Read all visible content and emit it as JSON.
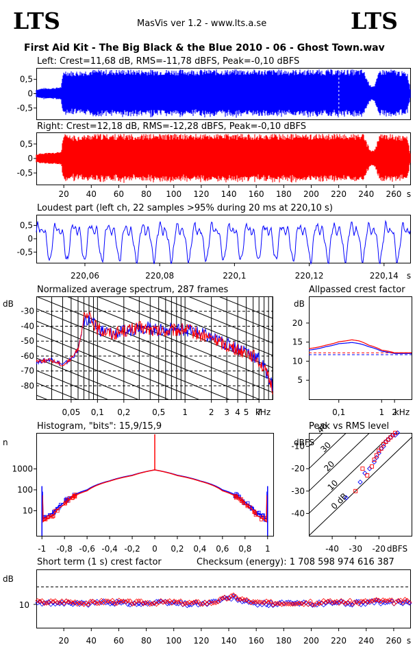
{
  "header": {
    "logo_left": "LTS",
    "logo_right": "LTS",
    "app_title": "MasVis ver 1.2 - www.lts.a.se",
    "file_title": "First Aid Kit - The Big Black & the Blue 2010 - 06 - Ghost Town.wav"
  },
  "colors": {
    "left": "#0000ff",
    "right": "#ff0000",
    "grid": "#000000",
    "background": "#ffffff"
  },
  "panels": {
    "left_wave": {
      "label": "Left: Crest=11,68 dB, RMS=-11,78 dBFS, Peak=-0,10 dBFS",
      "y_ticks": [
        "0,5",
        "0",
        "-0,5"
      ]
    },
    "right_wave": {
      "label": "Right: Crest=12,18 dB, RMS=-12,28 dBFS, Peak=-0,10 dBFS",
      "y_ticks": [
        "0,5",
        "0",
        "-0,5"
      ],
      "x_ticks": [
        "20",
        "40",
        "60",
        "80",
        "100",
        "120",
        "140",
        "160",
        "180",
        "200",
        "220",
        "240",
        "260"
      ],
      "x_unit": "s"
    },
    "loudest": {
      "label": "Loudest part (left  ch, 22 samples >95% during 20 ms at 220,10 s)",
      "y_ticks": [
        "0,5",
        "0",
        "-0,5"
      ],
      "x_ticks": [
        "220,06",
        "220,08",
        "220,1",
        "220,12",
        "220,14"
      ],
      "x_unit": "s"
    },
    "spectrum": {
      "label": "Normalized average spectrum, 287 frames",
      "y_unit": "dB",
      "y_ticks": [
        "-30",
        "-40",
        "-50",
        "-60",
        "-70",
        "-80"
      ],
      "x_ticks": [
        "0,05",
        "0,1",
        "0,2",
        "0,5",
        "1",
        "2",
        "3",
        "4",
        "5",
        "7"
      ],
      "x_unit": "kHz"
    },
    "allpass": {
      "label": "Allpassed crest factor",
      "y_unit": "dB",
      "y_ticks": [
        "20",
        "15",
        "10",
        "5"
      ],
      "x_ticks": [
        "0,1",
        "1",
        "2"
      ],
      "x_unit": "kHz"
    },
    "histogram": {
      "label": "Histogram, \"bits\": 15,9/15,9",
      "y_unit": "n",
      "y_ticks": [
        "1000",
        "100",
        "10"
      ],
      "x_ticks": [
        "-1",
        "-0,8",
        "-0,6",
        "-0,4",
        "-0,2",
        "0",
        "0,2",
        "0,4",
        "0,6",
        "0,8",
        "1"
      ]
    },
    "peak_rms": {
      "label": "Peak vs RMS level",
      "y_unit": "dBFS",
      "y_ticks": [
        "-10",
        "-20",
        "-30",
        "-40"
      ],
      "x_ticks": [
        "-40",
        "-30",
        "-20"
      ],
      "x_unit": "dBFS",
      "diag_labels": [
        "40",
        "30",
        "20",
        "10",
        "0 dB"
      ]
    },
    "short_crest": {
      "label": "Short term (1 s) crest factor",
      "checksum": "Checksum (energy):  1 708 598 974 616 387",
      "y_unit": "dB",
      "y_ticks": [
        "10"
      ],
      "x_ticks": [
        "20",
        "40",
        "60",
        "80",
        "100",
        "120",
        "140",
        "160",
        "180",
        "200",
        "220",
        "240",
        "260"
      ],
      "x_unit": "s"
    }
  },
  "chart_data": [
    {
      "type": "area",
      "title": "Left: Crest=11,68 dB, RMS=-11,78 dBFS, Peak=-0,10 dBFS",
      "x_unit": "s",
      "xlim": [
        0,
        272
      ],
      "ylim": [
        -0.9,
        0.9
      ],
      "envelope_x": [
        0,
        5,
        10,
        15,
        18,
        20,
        25,
        30,
        40,
        60,
        80,
        100,
        120,
        140,
        160,
        180,
        200,
        220,
        230,
        238,
        240,
        243,
        246,
        250,
        255,
        260,
        265,
        270,
        272
      ],
      "envelope_amp": [
        0.15,
        0.2,
        0.2,
        0.22,
        0.25,
        0.85,
        0.8,
        0.8,
        0.85,
        0.85,
        0.85,
        0.85,
        0.85,
        0.85,
        0.85,
        0.85,
        0.85,
        0.85,
        0.85,
        0.85,
        0.6,
        0.3,
        0.3,
        0.85,
        0.85,
        0.85,
        0.8,
        0.75,
        0.2
      ],
      "peak_marker_s": 220.1
    },
    {
      "type": "area",
      "title": "Right: Crest=12,18 dB, RMS=-12,28 dBFS, Peak=-0,10 dBFS",
      "x_unit": "s",
      "xlim": [
        0,
        272
      ],
      "ylim": [
        -0.9,
        0.9
      ],
      "envelope_x": [
        0,
        5,
        10,
        15,
        18,
        20,
        25,
        30,
        40,
        60,
        80,
        100,
        120,
        140,
        160,
        180,
        200,
        220,
        230,
        238,
        240,
        243,
        246,
        250,
        255,
        260,
        265,
        270,
        272
      ],
      "envelope_amp": [
        0.15,
        0.2,
        0.2,
        0.22,
        0.25,
        0.85,
        0.8,
        0.8,
        0.85,
        0.85,
        0.85,
        0.85,
        0.85,
        0.85,
        0.85,
        0.85,
        0.85,
        0.85,
        0.85,
        0.85,
        0.6,
        0.3,
        0.3,
        0.85,
        0.85,
        0.85,
        0.8,
        0.75,
        0.2
      ]
    },
    {
      "type": "line",
      "title": "Loudest part (left  ch, 22 samples >95% during 20 ms at 220,10 s)",
      "x_unit": "s",
      "xlim": [
        220.047,
        220.147
      ],
      "ylim": [
        -0.9,
        0.9
      ]
    },
    {
      "type": "line",
      "title": "Normalized average spectrum, 287 frames",
      "x_unit": "kHz",
      "y_unit": "dB",
      "ylim": [
        -89,
        -20
      ],
      "xscale": "log",
      "xlim": [
        0.02,
        10
      ],
      "series": [
        {
          "color": "#0000ff",
          "x": [
            0.02,
            0.03,
            0.04,
            0.05,
            0.06,
            0.07,
            0.08,
            0.1,
            0.15,
            0.2,
            0.3,
            0.5,
            0.7,
            1,
            1.5,
            2,
            3,
            4,
            5,
            6,
            7,
            8,
            10
          ],
          "y": [
            -64,
            -62,
            -66,
            -62,
            -56,
            -36,
            -35,
            -42,
            -45,
            -44,
            -40,
            -43,
            -42,
            -42,
            -45,
            -48,
            -52,
            -55,
            -56,
            -60,
            -62,
            -68,
            -80
          ]
        },
        {
          "color": "#ff0000",
          "x": [
            0.02,
            0.03,
            0.04,
            0.05,
            0.06,
            0.07,
            0.08,
            0.1,
            0.15,
            0.2,
            0.3,
            0.5,
            0.7,
            1,
            1.5,
            2,
            3,
            4,
            5,
            6,
            7,
            8,
            10
          ],
          "y": [
            -63,
            -63,
            -66,
            -62,
            -55,
            -35,
            -34,
            -42,
            -45,
            -43,
            -41,
            -44,
            -43,
            -42,
            -46,
            -48,
            -53,
            -56,
            -57,
            -60,
            -63,
            -69,
            -82
          ]
        }
      ]
    },
    {
      "type": "line",
      "title": "Allpassed crest factor",
      "x_unit": "kHz",
      "y_unit": "dB",
      "ylim": [
        0,
        27
      ],
      "xscale": "log",
      "xlim": [
        0.02,
        5
      ],
      "series": [
        {
          "color": "#0000ff",
          "x": [
            0.02,
            0.05,
            0.1,
            0.2,
            0.3,
            0.5,
            1,
            2,
            5
          ],
          "y": [
            12.9,
            13.8,
            14.6,
            14.9,
            14.6,
            13.8,
            12.6,
            12.0,
            12.0
          ]
        },
        {
          "color": "#ff0000",
          "x": [
            0.02,
            0.05,
            0.1,
            0.2,
            0.3,
            0.5,
            1,
            2,
            5
          ],
          "y": [
            13.3,
            14.2,
            15.1,
            15.6,
            15.3,
            14.2,
            12.9,
            12.2,
            12.2
          ]
        }
      ],
      "reference_lines": [
        {
          "color": "#0000ff",
          "y": 11.7
        },
        {
          "color": "#ff0000",
          "y": 12.2
        }
      ]
    },
    {
      "type": "line",
      "title": "Histogram, \"bits\": 15,9/15,9",
      "y_unit": "n",
      "yscale": "log",
      "xlim": [
        -1.05,
        1.05
      ],
      "x": [
        -1,
        -0.99,
        -0.9,
        -0.8,
        -0.6,
        -0.4,
        -0.2,
        0,
        0.2,
        0.4,
        0.6,
        0.8,
        0.9,
        0.99,
        1
      ],
      "series": [
        {
          "color": "#0000ff",
          "y": [
            150,
            4,
            8,
            25,
            100,
            270,
            500,
            900,
            500,
            270,
            100,
            25,
            8,
            4,
            150
          ]
        },
        {
          "color": "#ff0000",
          "y": [
            100,
            3,
            6,
            20,
            90,
            260,
            480,
            900,
            480,
            260,
            90,
            20,
            6,
            3,
            100
          ]
        }
      ]
    },
    {
      "type": "scatter",
      "title": "Peak vs RMS level",
      "x_unit": "dBFS",
      "y_unit": "dBFS",
      "xlim": [
        -50,
        -6
      ],
      "ylim": [
        -50,
        -4
      ],
      "series": [
        {
          "color": "#0000ff",
          "x": [
            -34,
            -28,
            -26,
            -24,
            -22,
            -21,
            -20,
            -19,
            -18,
            -17,
            -16,
            -15,
            -14,
            -13,
            -12
          ],
          "y": [
            -33,
            -26,
            -22,
            -20,
            -17,
            -15,
            -13,
            -11,
            -10,
            -8,
            -7,
            -6,
            -5,
            -5,
            -4
          ]
        },
        {
          "color": "#ff0000",
          "x": [
            -30,
            -27,
            -25,
            -23,
            -22,
            -21,
            -20,
            -19,
            -18,
            -17,
            -16,
            -15,
            -14,
            -13
          ],
          "y": [
            -30,
            -20,
            -23,
            -19,
            -16,
            -14,
            -12,
            -11,
            -9,
            -8,
            -7,
            -6,
            -5,
            -4
          ]
        }
      ]
    },
    {
      "type": "scatter",
      "title": "Short term (1 s) crest factor",
      "x_unit": "s",
      "y_unit": "dB",
      "xlim": [
        0,
        272
      ],
      "ylim": [
        0,
        25
      ],
      "reference_line_y": 17.5,
      "series": [
        {
          "color": "#0000ff",
          "x": [
            5,
            20,
            35,
            50,
            65,
            80,
            95,
            110,
            125,
            143,
            155,
            170,
            185,
            200,
            215,
            230,
            245,
            260,
            268
          ],
          "y": [
            10.5,
            10.8,
            10.2,
            11,
            10.6,
            10.4,
            10.8,
            10.2,
            10.6,
            13,
            10.4,
            10.2,
            10.5,
            10.2,
            10.8,
            10.4,
            11,
            10.6,
            11
          ]
        },
        {
          "color": "#ff0000",
          "x": [
            8,
            23,
            38,
            53,
            68,
            83,
            98,
            113,
            128,
            143,
            158,
            173,
            188,
            203,
            218,
            233,
            248,
            263,
            268
          ],
          "y": [
            11,
            11.2,
            10.6,
            11.4,
            10.8,
            10.8,
            11,
            10.6,
            10.8,
            13.5,
            10.8,
            10.6,
            10.8,
            10.6,
            11.2,
            10.8,
            11.6,
            11,
            11.4
          ]
        }
      ]
    }
  ]
}
